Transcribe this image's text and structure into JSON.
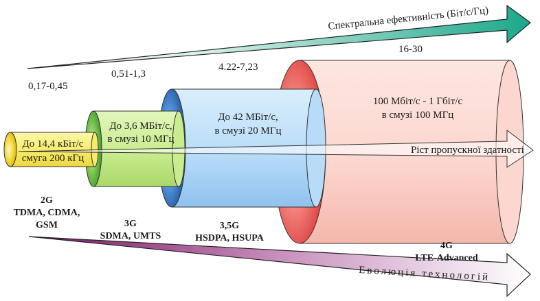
{
  "top_arrow": {
    "label": "Спектральна ефективність (Біт/с/Гц)",
    "color_start": "#ffffff",
    "color_end": "#1aa88a"
  },
  "middle_arrow": {
    "label": "Ріст  пропускної  здатності"
  },
  "bottom_arrow": {
    "label": "Еволюція   технологій",
    "color_start": "#8b1a6b",
    "color_end": "#ffffff"
  },
  "spectral_values": [
    "0,17-0,45",
    "0,51-1,3",
    "4.22-7,23",
    "16-30"
  ],
  "generations": [
    {
      "speed": "До 14,4 кБіт/с",
      "band": "смуга 200 кГц",
      "gen": "2G",
      "tech": [
        "TDMA, CDMA,",
        "GSM"
      ],
      "color": "#f7ec6a",
      "rim": "#e8c400"
    },
    {
      "speed": "До 3,6 МБіт/с,",
      "band": "в смузі 10 МГц",
      "gen": "3G",
      "tech": [
        "SDMA, UMTS"
      ],
      "color": "#c9ec8e",
      "rim": "#3a9a28"
    },
    {
      "speed": "До 42 МБіт/с,",
      "band": "в смузі 20 МГц",
      "gen": "3,5G",
      "tech": [
        "HSDPA, HSUPA"
      ],
      "color": "#b8dcf8",
      "rim": "#1a5fb0"
    },
    {
      "speed": "100 Мбіт/с - 1 Гбіт/с",
      "band": "в смузі 100 МГц",
      "gen": "4G",
      "tech": [
        "LTE-Advanced"
      ],
      "color": "#fcd7cf",
      "rim": "#e0484a"
    }
  ]
}
